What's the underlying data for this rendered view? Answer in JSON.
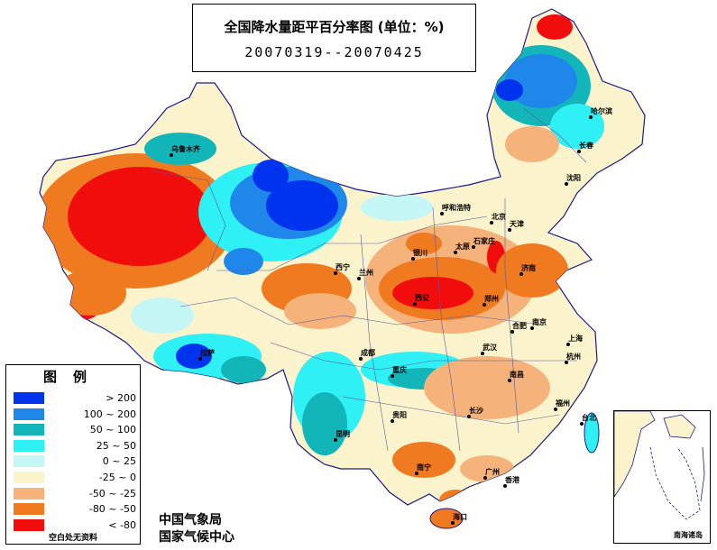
{
  "title": "全国降水量距平百分率图 (单位：%)",
  "period": "20070319--20070425",
  "legend": {
    "title": "图例",
    "items": [
      {
        "label": "> 200",
        "color": "#0033ee"
      },
      {
        "label": "100 ~ 200",
        "color": "#1f86ea"
      },
      {
        "label": "50 ~ 100",
        "color": "#12b5b8"
      },
      {
        "label": "25 ~ 50",
        "color": "#2ff0f5"
      },
      {
        "label": "0 ~ 25",
        "color": "#c4f6f6"
      },
      {
        "label": "-25 ~ 0",
        "color": "#fbf3cc"
      },
      {
        "label": "-50 ~ -25",
        "color": "#f5b27a"
      },
      {
        "label": "-80 ~ -50",
        "color": "#f07a1f"
      },
      {
        "label": "< -80",
        "color": "#f20d0d"
      }
    ],
    "note": "空白处无资料"
  },
  "credits": [
    "中国气象局",
    "国家气候中心"
  ],
  "inset_label": "南海诸岛",
  "cities": [
    {
      "name": "哈尔滨"
    },
    {
      "name": "长春"
    },
    {
      "name": "沈阳"
    },
    {
      "name": "乌鲁木齐"
    },
    {
      "name": "呼和浩特"
    },
    {
      "name": "北京"
    },
    {
      "name": "天津"
    },
    {
      "name": "石家庄"
    },
    {
      "name": "太原"
    },
    {
      "name": "银川"
    },
    {
      "name": "济南"
    },
    {
      "name": "西宁"
    },
    {
      "name": "兰州"
    },
    {
      "name": "西安"
    },
    {
      "name": "郑州"
    },
    {
      "name": "合肥"
    },
    {
      "name": "南京"
    },
    {
      "name": "上海"
    },
    {
      "name": "拉萨"
    },
    {
      "name": "成都"
    },
    {
      "name": "武汉"
    },
    {
      "name": "杭州"
    },
    {
      "name": "重庆"
    },
    {
      "name": "南昌"
    },
    {
      "name": "长沙"
    },
    {
      "name": "贵阳"
    },
    {
      "name": "福州"
    },
    {
      "name": "台北"
    },
    {
      "name": "昆明"
    },
    {
      "name": "广州"
    },
    {
      "name": "南宁"
    },
    {
      "name": "香港"
    },
    {
      "name": "海口"
    }
  ]
}
